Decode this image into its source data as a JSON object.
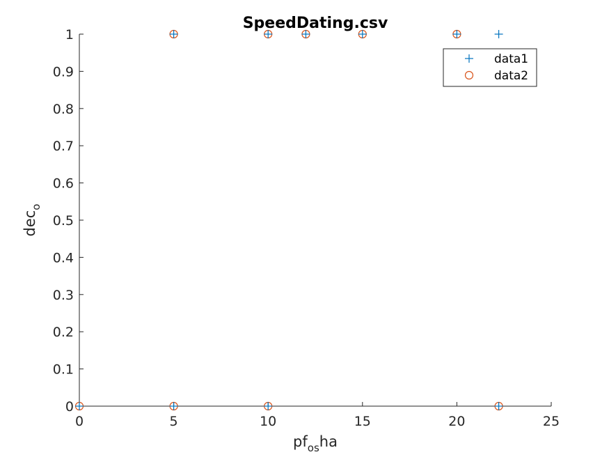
{
  "chart_data": {
    "type": "scatter",
    "title": "SpeedDating.csv",
    "xlabel": {
      "base": "pf",
      "sub": "os",
      "rest": "ha"
    },
    "ylabel": {
      "base": "dec",
      "sub": "o"
    },
    "xlim": [
      0,
      25
    ],
    "ylim": [
      0,
      1
    ],
    "xticks": [
      "0",
      "5",
      "10",
      "15",
      "20",
      "25"
    ],
    "yticks": [
      "0",
      "0.1",
      "0.2",
      "0.3",
      "0.4",
      "0.5",
      "0.6",
      "0.7",
      "0.8",
      "0.9",
      "1"
    ],
    "grid": false,
    "legend_position": "top-right",
    "series": [
      {
        "name": "data1",
        "marker": "plus",
        "color": "#0072BD",
        "points": [
          [
            0,
            0
          ],
          [
            5,
            0
          ],
          [
            5,
            1
          ],
          [
            10,
            0
          ],
          [
            10,
            1
          ],
          [
            12,
            1
          ],
          [
            15,
            1
          ],
          [
            20,
            1
          ],
          [
            22.22,
            0
          ],
          [
            22.22,
            1
          ]
        ]
      },
      {
        "name": "data2",
        "marker": "circle",
        "color": "#D95319",
        "points": [
          [
            0,
            0
          ],
          [
            5,
            0
          ],
          [
            5,
            1
          ],
          [
            10,
            0
          ],
          [
            10,
            1
          ],
          [
            12,
            1
          ],
          [
            15,
            1
          ],
          [
            20,
            1
          ],
          [
            22.22,
            0
          ]
        ]
      }
    ]
  }
}
